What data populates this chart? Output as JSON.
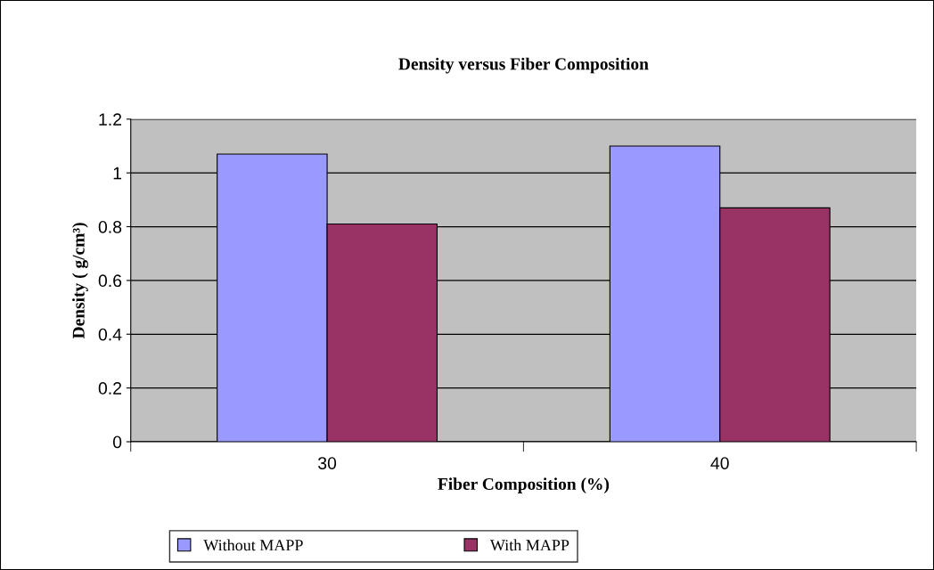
{
  "chart_data": {
    "type": "bar",
    "title": "Density versus Fiber Composition",
    "xlabel": "Fiber Composition (%)",
    "ylabel": "Density ( g/cm³)",
    "categories": [
      "30",
      "40"
    ],
    "series": [
      {
        "name": "Without MAPP",
        "color": "#9999ff",
        "values": [
          1.07,
          1.1
        ]
      },
      {
        "name": "With MAPP",
        "color": "#993366",
        "values": [
          0.81,
          0.87
        ]
      }
    ],
    "ylim": [
      0,
      1.2
    ],
    "yticks": [
      0,
      0.2,
      0.4,
      0.6,
      0.8,
      1,
      1.2
    ],
    "grid": "y",
    "legend": "bottom"
  }
}
